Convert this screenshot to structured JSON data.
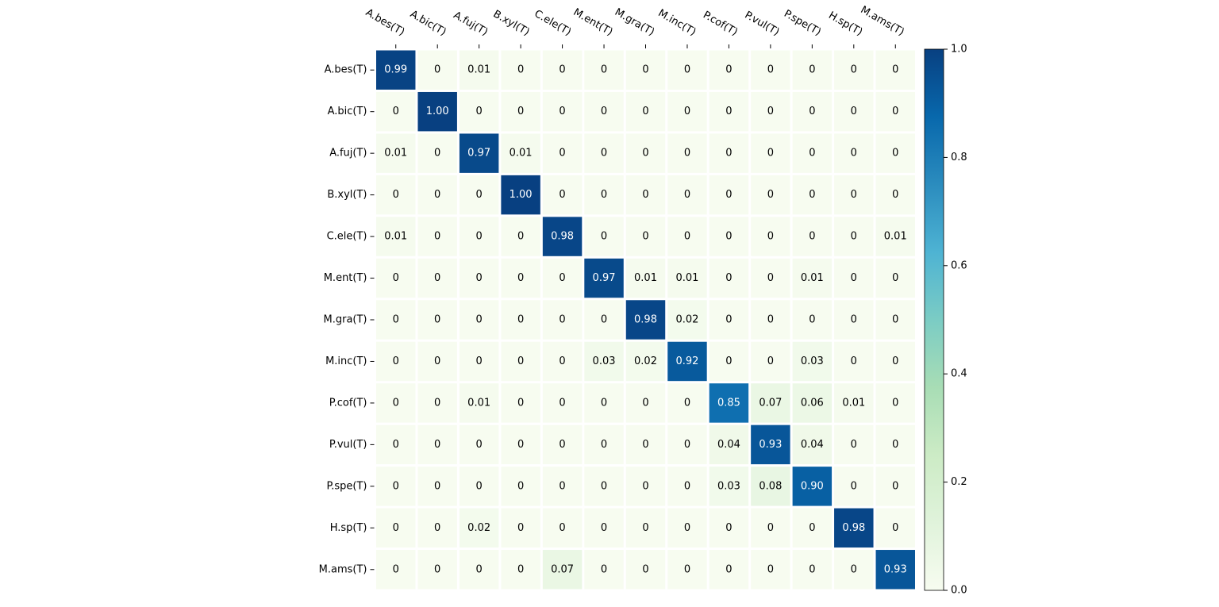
{
  "chart_data": {
    "type": "heatmap",
    "title": "",
    "xlabel": "",
    "ylabel": "",
    "x_categories": [
      "A.bes(T)",
      "A.bic(T)",
      "A.fuj(T)",
      "B.xyl(T)",
      "C.ele(T)",
      "M.ent(T)",
      "M.gra(T)",
      "M.inc(T)",
      "P.cof(T)",
      "P.vul(T)",
      "P.spe(T)",
      "H.sp(T)",
      "M.ams(T)"
    ],
    "y_categories": [
      "A.bes(T)",
      "A.bic(T)",
      "A.fuj(T)",
      "B.xyl(T)",
      "C.ele(T)",
      "M.ent(T)",
      "M.gra(T)",
      "M.inc(T)",
      "P.cof(T)",
      "P.vul(T)",
      "P.spe(T)",
      "H.sp(T)",
      "M.ams(T)"
    ],
    "values": [
      [
        0.99,
        0,
        0.01,
        0,
        0,
        0,
        0,
        0,
        0,
        0,
        0,
        0,
        0
      ],
      [
        0,
        1.0,
        0,
        0,
        0,
        0,
        0,
        0,
        0,
        0,
        0,
        0,
        0
      ],
      [
        0.01,
        0,
        0.97,
        0.01,
        0,
        0,
        0,
        0,
        0,
        0,
        0,
        0,
        0
      ],
      [
        0,
        0,
        0,
        1.0,
        0,
        0,
        0,
        0,
        0,
        0,
        0,
        0,
        0
      ],
      [
        0.01,
        0,
        0,
        0,
        0.98,
        0,
        0,
        0,
        0,
        0,
        0,
        0,
        0.01
      ],
      [
        0,
        0,
        0,
        0,
        0,
        0.97,
        0.01,
        0.01,
        0,
        0,
        0.01,
        0,
        0
      ],
      [
        0,
        0,
        0,
        0,
        0,
        0,
        0.98,
        0.02,
        0,
        0,
        0,
        0,
        0
      ],
      [
        0,
        0,
        0,
        0,
        0,
        0.03,
        0.02,
        0.92,
        0,
        0,
        0.03,
        0,
        0
      ],
      [
        0,
        0,
        0.01,
        0,
        0,
        0,
        0,
        0,
        0.85,
        0.07,
        0.06,
        0.01,
        0
      ],
      [
        0,
        0,
        0,
        0,
        0,
        0,
        0,
        0,
        0.04,
        0.93,
        0.04,
        0,
        0
      ],
      [
        0,
        0,
        0,
        0,
        0,
        0,
        0,
        0,
        0.03,
        0.08,
        0.9,
        0,
        0
      ],
      [
        0,
        0,
        0.02,
        0,
        0,
        0,
        0,
        0,
        0,
        0,
        0,
        0.98,
        0
      ],
      [
        0,
        0,
        0,
        0,
        0.07,
        0,
        0,
        0,
        0,
        0,
        0,
        0,
        0.93
      ]
    ],
    "cell_labels": [
      [
        "0.99",
        "0",
        "0.01",
        "0",
        "0",
        "0",
        "0",
        "0",
        "0",
        "0",
        "0",
        "0",
        "0"
      ],
      [
        "0",
        "1.00",
        "0",
        "0",
        "0",
        "0",
        "0",
        "0",
        "0",
        "0",
        "0",
        "0",
        "0"
      ],
      [
        "0.01",
        "0",
        "0.97",
        "0.01",
        "0",
        "0",
        "0",
        "0",
        "0",
        "0",
        "0",
        "0",
        "0"
      ],
      [
        "0",
        "0",
        "0",
        "1.00",
        "0",
        "0",
        "0",
        "0",
        "0",
        "0",
        "0",
        "0",
        "0"
      ],
      [
        "0.01",
        "0",
        "0",
        "0",
        "0.98",
        "0",
        "0",
        "0",
        "0",
        "0",
        "0",
        "0",
        "0.01"
      ],
      [
        "0",
        "0",
        "0",
        "0",
        "0",
        "0.97",
        "0.01",
        "0.01",
        "0",
        "0",
        "0.01",
        "0",
        "0"
      ],
      [
        "0",
        "0",
        "0",
        "0",
        "0",
        "0",
        "0.98",
        "0.02",
        "0",
        "0",
        "0",
        "0",
        "0"
      ],
      [
        "0",
        "0",
        "0",
        "0",
        "0",
        "0.03",
        "0.02",
        "0.92",
        "0",
        "0",
        "0.03",
        "0",
        "0"
      ],
      [
        "0",
        "0",
        "0.01",
        "0",
        "0",
        "0",
        "0",
        "0",
        "0.85",
        "0.07",
        "0.06",
        "0.01",
        "0"
      ],
      [
        "0",
        "0",
        "0",
        "0",
        "0",
        "0",
        "0",
        "0",
        "0.04",
        "0.93",
        "0.04",
        "0",
        "0"
      ],
      [
        "0",
        "0",
        "0",
        "0",
        "0",
        "0",
        "0",
        "0",
        "0.03",
        "0.08",
        "0.90",
        "0",
        "0"
      ],
      [
        "0",
        "0",
        "0.02",
        "0",
        "0",
        "0",
        "0",
        "0",
        "0",
        "0",
        "0",
        "0.98",
        "0"
      ],
      [
        "0",
        "0",
        "0",
        "0",
        "0.07",
        "0",
        "0",
        "0",
        "0",
        "0",
        "0",
        "0",
        "0.93"
      ]
    ],
    "colorscale": "GnBu",
    "colorbar": {
      "range": [
        0.0,
        1.0
      ],
      "ticks": [
        0.0,
        0.2,
        0.4,
        0.6,
        0.8,
        1.0
      ],
      "tick_labels": [
        "0.0",
        "0.2",
        "0.4",
        "0.6",
        "0.8",
        "1.0"
      ]
    },
    "x_axis_position": "top",
    "grid": false,
    "legend": "colorbar-right"
  }
}
